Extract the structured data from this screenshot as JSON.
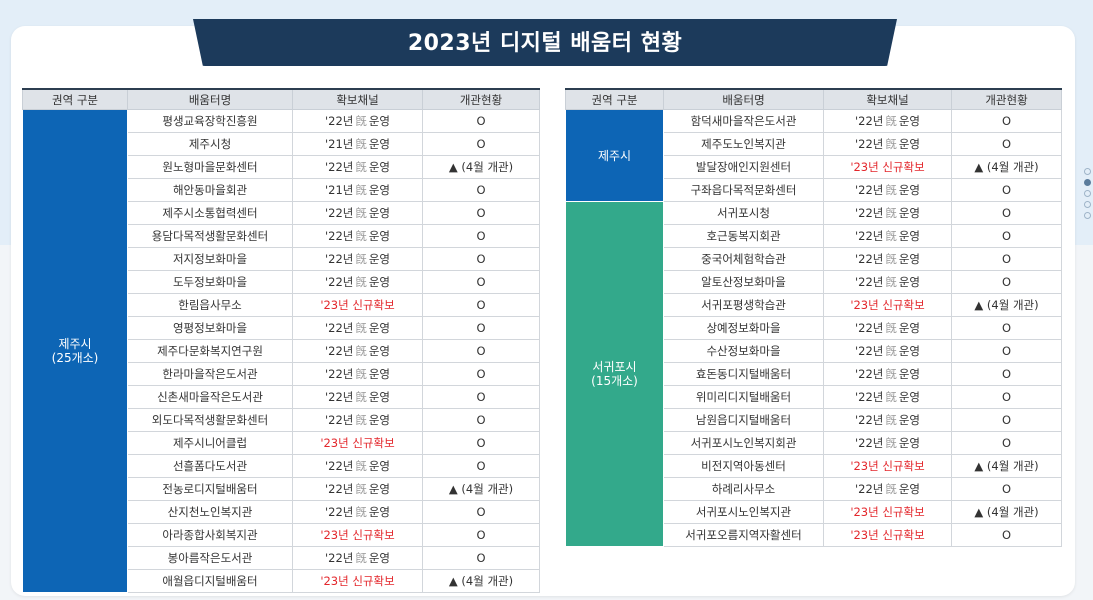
{
  "title": "2023년 디지털 배움터 현황",
  "colors": {
    "title_band": "#1c3a5b",
    "jeju_city": "#0d65b5",
    "seogwipo": "#33a98b",
    "new_channel": "#e3262b"
  },
  "tables": [
    {
      "headers": [
        "권역 구분",
        "배움터명",
        "확보채널",
        "개관현황"
      ],
      "region_lines": [
        "제주시",
        "(25개소)"
      ],
      "rows": [
        {
          "name": "평생교육장학진흥원",
          "ch1": "'22년",
          "ch2": "旣",
          "ch3": "운영",
          "status": "O"
        },
        {
          "name": "제주시청",
          "ch1": "'21년",
          "ch2": "旣",
          "ch3": "운영",
          "status": "O"
        },
        {
          "name": "원노형마을문화센터",
          "ch1": "'22년",
          "ch2": "旣",
          "ch3": "운영",
          "status": "▲ (4월 개관)"
        },
        {
          "name": "해안동마을회관",
          "ch1": "'21년",
          "ch2": "旣",
          "ch3": "운영",
          "status": "O"
        },
        {
          "name": "제주시소통협력센터",
          "ch1": "'22년",
          "ch2": "旣",
          "ch3": "운영",
          "status": "O"
        },
        {
          "name": "용담다목적생활문화센터",
          "ch1": "'22년",
          "ch2": "旣",
          "ch3": "운영",
          "status": "O"
        },
        {
          "name": "저지정보화마을",
          "ch1": "'22년",
          "ch2": "旣",
          "ch3": "운영",
          "status": "O"
        },
        {
          "name": "도두정보화마을",
          "ch1": "'22년",
          "ch2": "旣",
          "ch3": "운영",
          "status": "O"
        },
        {
          "name": "한림읍사무소",
          "new_label": "'23년 신규확보",
          "status": "O"
        },
        {
          "name": "영평정보화마을",
          "ch1": "'22년",
          "ch2": "旣",
          "ch3": "운영",
          "status": "O"
        },
        {
          "name": "제주다문화복지연구원",
          "ch1": "'22년",
          "ch2": "旣",
          "ch3": "운영",
          "status": "O"
        },
        {
          "name": "한라마을작은도서관",
          "ch1": "'22년",
          "ch2": "旣",
          "ch3": "운영",
          "status": "O"
        },
        {
          "name": "신촌새마을작은도서관",
          "ch1": "'22년",
          "ch2": "旣",
          "ch3": "운영",
          "status": "O"
        },
        {
          "name": "외도다목적생활문화센터",
          "ch1": "'22년",
          "ch2": "旣",
          "ch3": "운영",
          "status": "O"
        },
        {
          "name": "제주시니어클럽",
          "new_label": "'23년 신규확보",
          "status": "O"
        },
        {
          "name": "선흘폼다도서관",
          "ch1": "'22년",
          "ch2": "旣",
          "ch3": "운영",
          "status": "O"
        },
        {
          "name": "전농로디지털배움터",
          "ch1": "'22년",
          "ch2": "旣",
          "ch3": "운영",
          "status": "▲ (4월 개관)"
        },
        {
          "name": "산지천노인복지관",
          "ch1": "'22년",
          "ch2": "旣",
          "ch3": "운영",
          "status": "O"
        },
        {
          "name": "아라종합사회복지관",
          "new_label": "'23년 신규확보",
          "status": "O"
        },
        {
          "name": "봉아름작은도서관",
          "ch1": "'22년",
          "ch2": "旣",
          "ch3": "운영",
          "status": "O"
        },
        {
          "name": "애월읍디지털배움터",
          "new_label": "'23년 신규확보",
          "status": "▲ (4월 개관)"
        }
      ]
    },
    {
      "headers": [
        "권역 구분",
        "배움터명",
        "확보채널",
        "개관현황"
      ],
      "groups": [
        {
          "region_lines": [
            "제주시",
            ""
          ],
          "rows": [
            {
              "name": "함덕새마을작은도서관",
              "ch1": "'22년",
              "ch2": "旣",
              "ch3": "운영",
              "status": "O"
            },
            {
              "name": "제주도노인복지관",
              "ch1": "'22년",
              "ch2": "旣",
              "ch3": "운영",
              "status": "O"
            },
            {
              "name": "발달장애인지원센터",
              "new_label": "'23년 신규확보",
              "status": "▲ (4월 개관)"
            },
            {
              "name": "구좌읍다목적문화센터",
              "ch1": "'22년",
              "ch2": "旣",
              "ch3": "운영",
              "status": "O"
            }
          ]
        },
        {
          "region_lines": [
            "서귀포시",
            "(15개소)"
          ],
          "rows": [
            {
              "name": "서귀포시청",
              "ch1": "'22년",
              "ch2": "旣",
              "ch3": "운영",
              "status": "O"
            },
            {
              "name": "호근동복지회관",
              "ch1": "'22년",
              "ch2": "旣",
              "ch3": "운영",
              "status": "O"
            },
            {
              "name": "중국어체험학습관",
              "ch1": "'22년",
              "ch2": "旣",
              "ch3": "운영",
              "status": "O"
            },
            {
              "name": "알토산정보화마을",
              "ch1": "'22년",
              "ch2": "旣",
              "ch3": "운영",
              "status": "O"
            },
            {
              "name": "서귀포평생학습관",
              "new_label": "'23년 신규확보",
              "status": "▲ (4월 개관)"
            },
            {
              "name": "상예정보화마을",
              "ch1": "'22년",
              "ch2": "旣",
              "ch3": "운영",
              "status": "O"
            },
            {
              "name": "수산정보화마을",
              "ch1": "'22년",
              "ch2": "旣",
              "ch3": "운영",
              "status": "O"
            },
            {
              "name": "효돈동디지털배움터",
              "ch1": "'22년",
              "ch2": "旣",
              "ch3": "운영",
              "status": "O"
            },
            {
              "name": "위미리디지털배움터",
              "ch1": "'22년",
              "ch2": "旣",
              "ch3": "운영",
              "status": "O"
            },
            {
              "name": "남원읍디지털배움터",
              "ch1": "'22년",
              "ch2": "旣",
              "ch3": "운영",
              "status": "O"
            },
            {
              "name": "서귀포시노인복지회관",
              "ch1": "'22년",
              "ch2": "旣",
              "ch3": "운영",
              "status": "O"
            },
            {
              "name": "비전지역아동센터",
              "new_label": "'23년 신규확보",
              "status": "▲ (4월 개관)"
            },
            {
              "name": "하례리사무소",
              "ch1": "'22년",
              "ch2": "旣",
              "ch3": "운영",
              "status": "O"
            },
            {
              "name": "서귀포시노인복지관",
              "new_label": "'23년 신규확보",
              "status": "▲ (4월 개관)"
            },
            {
              "name": "서귀포오름지역자활센터",
              "new_label": "'23년 신규확보",
              "status": "O"
            }
          ]
        }
      ]
    }
  ]
}
